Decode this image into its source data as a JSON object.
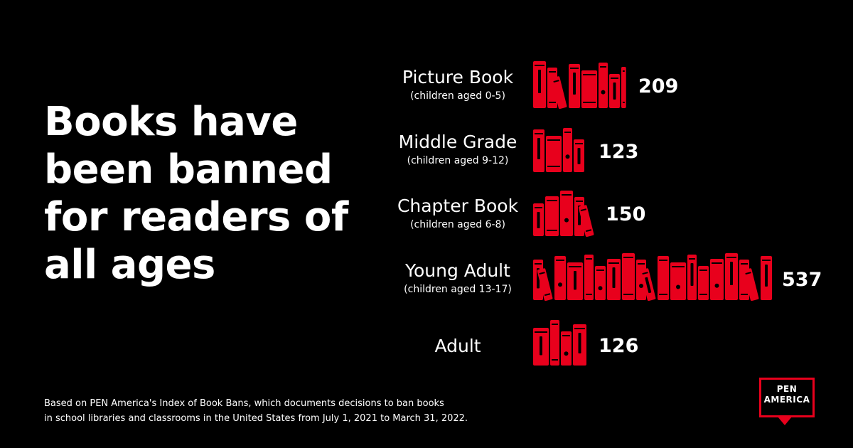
{
  "headline": {
    "lines": [
      "Books have",
      "been banned",
      "for readers of",
      "all ages"
    ]
  },
  "chart_data": {
    "type": "bar",
    "title": "Books have been banned for readers of all ages",
    "categories": [
      "Picture Book",
      "Middle Grade",
      "Chapter Book",
      "Young Adult",
      "Adult"
    ],
    "subtitles": [
      "(children aged 0-5)",
      "(children aged 9-12)",
      "(children aged 6-8)",
      "(children aged 13-17)",
      ""
    ],
    "values": [
      209,
      123,
      150,
      537,
      126
    ],
    "value_labels": [
      "209",
      "123",
      "150",
      "537",
      "126"
    ],
    "color": "#e8001c",
    "orientation": "horizontal"
  },
  "footnote": {
    "lines": [
      "Based on PEN America's Index of Book Bans, which documents decisions to ban books",
      "in school libraries and classrooms in the United States from July 1, 2021 to March 31, 2022."
    ]
  },
  "logo": {
    "line1": "PEN",
    "line2": "AMERICA",
    "color": "#e8001c"
  }
}
